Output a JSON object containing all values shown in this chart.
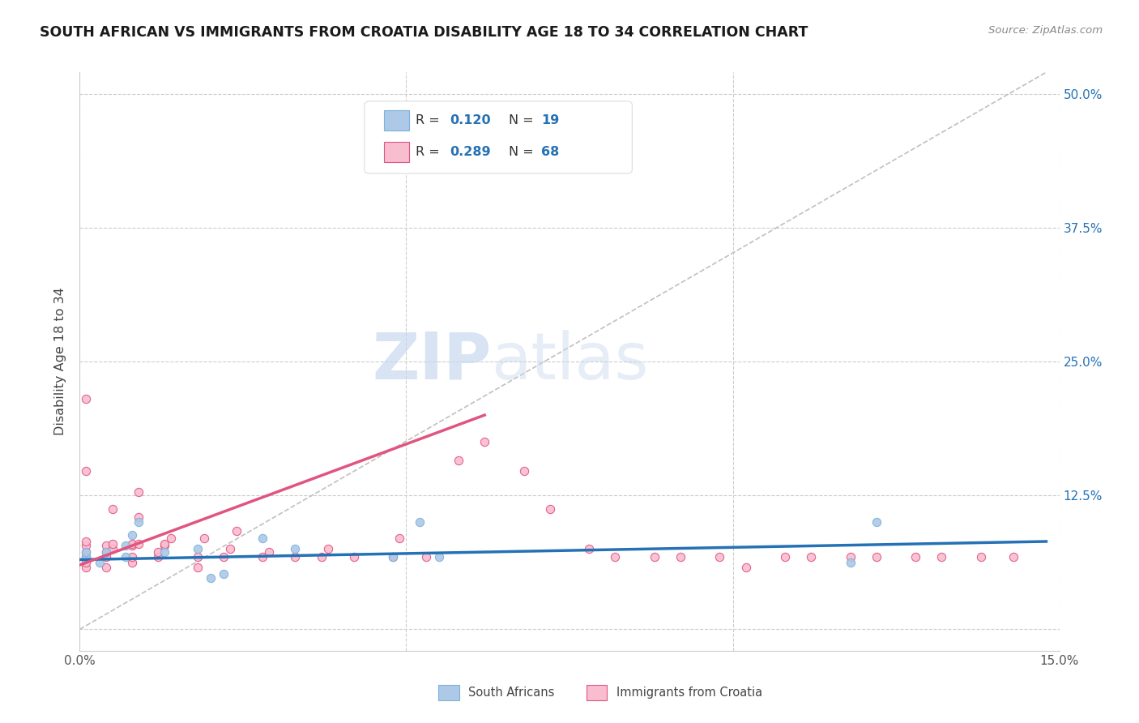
{
  "title": "SOUTH AFRICAN VS IMMIGRANTS FROM CROATIA DISABILITY AGE 18 TO 34 CORRELATION CHART",
  "source": "Source: ZipAtlas.com",
  "ylabel": "Disability Age 18 to 34",
  "xlim": [
    0.0,
    0.15
  ],
  "ylim": [
    -0.02,
    0.52
  ],
  "blue_color": "#7ab3d9",
  "pink_color": "#f4a0b8",
  "blue_fill": "#aec8e8",
  "pink_fill": "#f9bdd0",
  "line_blue": "#2471b5",
  "line_pink": "#e05580",
  "line_gray": "#c0c0c0",
  "watermark_zip": "ZIP",
  "watermark_atlas": "atlas",
  "blue_scatter_x": [
    0.001,
    0.001,
    0.003,
    0.004,
    0.007,
    0.007,
    0.008,
    0.009,
    0.013,
    0.018,
    0.02,
    0.022,
    0.028,
    0.033,
    0.048,
    0.052,
    0.055,
    0.118,
    0.122
  ],
  "blue_scatter_y": [
    0.068,
    0.072,
    0.062,
    0.072,
    0.068,
    0.078,
    0.088,
    0.1,
    0.072,
    0.075,
    0.048,
    0.052,
    0.085,
    0.075,
    0.068,
    0.1,
    0.068,
    0.062,
    0.1
  ],
  "pink_scatter_x": [
    0.001,
    0.001,
    0.001,
    0.001,
    0.001,
    0.001,
    0.001,
    0.001,
    0.004,
    0.004,
    0.004,
    0.004,
    0.005,
    0.005,
    0.005,
    0.008,
    0.008,
    0.008,
    0.008,
    0.009,
    0.009,
    0.009,
    0.012,
    0.012,
    0.013,
    0.013,
    0.014,
    0.018,
    0.018,
    0.019,
    0.022,
    0.023,
    0.024,
    0.028,
    0.029,
    0.033,
    0.037,
    0.038,
    0.042,
    0.048,
    0.049,
    0.053,
    0.058,
    0.062,
    0.068,
    0.072,
    0.078,
    0.082,
    0.088,
    0.092,
    0.098,
    0.102,
    0.108,
    0.112,
    0.118,
    0.122,
    0.128,
    0.132,
    0.138,
    0.143
  ],
  "pink_scatter_y": [
    0.058,
    0.062,
    0.068,
    0.072,
    0.078,
    0.082,
    0.148,
    0.215,
    0.058,
    0.068,
    0.072,
    0.078,
    0.075,
    0.08,
    0.112,
    0.062,
    0.068,
    0.078,
    0.08,
    0.08,
    0.105,
    0.128,
    0.068,
    0.072,
    0.078,
    0.08,
    0.085,
    0.058,
    0.068,
    0.085,
    0.068,
    0.075,
    0.092,
    0.068,
    0.072,
    0.068,
    0.068,
    0.075,
    0.068,
    0.068,
    0.085,
    0.068,
    0.158,
    0.175,
    0.148,
    0.112,
    0.075,
    0.068,
    0.068,
    0.068,
    0.068,
    0.058,
    0.068,
    0.068,
    0.068,
    0.068,
    0.068,
    0.068,
    0.068,
    0.068
  ],
  "blue_trend_x": [
    0.0,
    0.148
  ],
  "blue_trend_y": [
    0.065,
    0.082
  ],
  "pink_trend_x": [
    0.0,
    0.062
  ],
  "pink_trend_y": [
    0.06,
    0.2
  ],
  "gray_trend_x": [
    0.0,
    0.148
  ],
  "gray_trend_y": [
    0.0,
    0.52
  ]
}
